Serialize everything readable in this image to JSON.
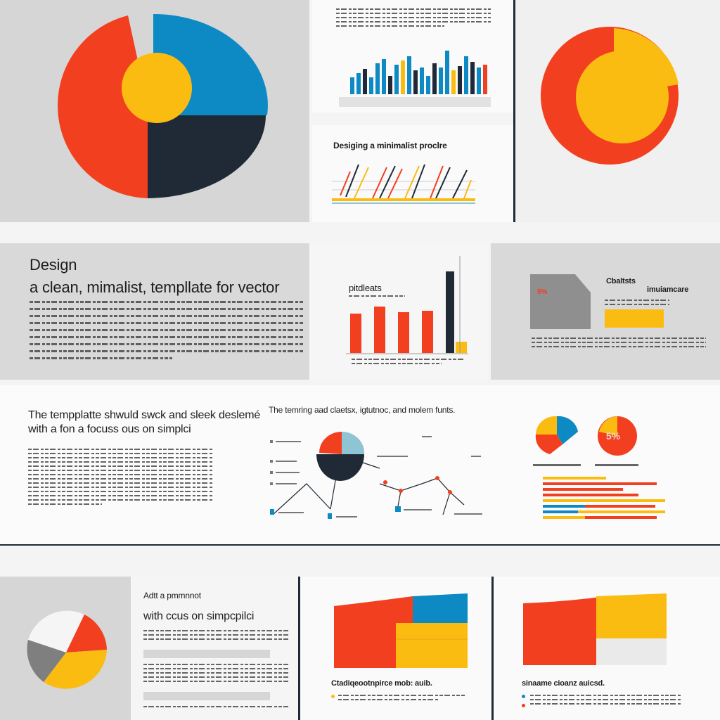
{
  "colors": {
    "red": "#f23f1f",
    "blue": "#0d8ac4",
    "yellow": "#fbbc12",
    "dark": "#1f2a36",
    "gray": "#8f8f8f",
    "lightblue": "#8ec4d3",
    "panel_gray": "#d9d9d9",
    "panel_light": "#f7f7f7"
  },
  "row1": {
    "line_chart_title": "Desiging a minimalist proclre"
  },
  "row2": {
    "heading_line1": "Design",
    "heading_line2": "a clean, mimalist, templlate for    vector",
    "bar_chart_label": "pitdleats",
    "card_title": "Cbaltsts",
    "card_subtitle": "imuiamcare",
    "card_badge": "5%"
  },
  "row3": {
    "heading_line1": "The tempplatte shwuld swck and sleek deslemé",
    "heading_line2": "with a fon a focuss ous on simplci",
    "infographic_title": "The temring aad claetsx, igtutnoc, and molem funts.",
    "pie_badge": "5%"
  },
  "row4": {
    "heading_line1": "Adtt a pmmnnot",
    "heading_line2": "with ccus on simpcpilci",
    "chart2_caption": "Ctadiqeootnpirce mob: auib.",
    "chart3_caption": "sinaame cioanz auicsd."
  }
}
